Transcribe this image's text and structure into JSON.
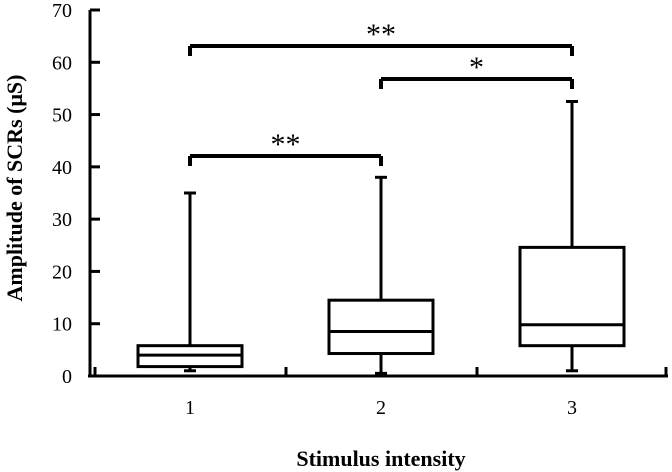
{
  "chart_data": {
    "type": "box",
    "xlabel": "Stimulus intensity",
    "ylabel": "Amplitude of SCRs (μS)",
    "ylim": [
      0,
      70
    ],
    "yticks": [
      "0",
      "10",
      "20",
      "30",
      "40",
      "50",
      "60",
      "70"
    ],
    "categories": [
      "1",
      "2",
      "3"
    ],
    "boxes": [
      {
        "category": "1",
        "min": 1.0,
        "q1": 1.8,
        "median": 4.0,
        "q3": 5.8,
        "max": 35.0
      },
      {
        "category": "2",
        "min": 0.5,
        "q1": 4.3,
        "median": 8.5,
        "q3": 14.5,
        "max": 38.0
      },
      {
        "category": "3",
        "min": 1.0,
        "q1": 5.8,
        "median": 9.8,
        "q3": 24.6,
        "max": 52.5
      }
    ],
    "significance": [
      {
        "from": "1",
        "to": "2",
        "label": "**"
      },
      {
        "from": "2",
        "to": "3",
        "label": "*"
      },
      {
        "from": "1",
        "to": "3",
        "label": "**"
      }
    ],
    "grid": false,
    "legend": "none"
  }
}
